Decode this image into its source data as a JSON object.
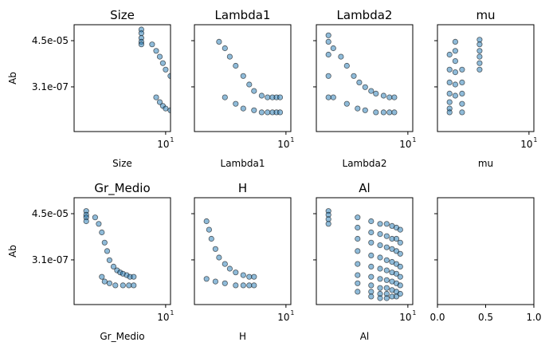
{
  "figure": {
    "shared_ylabel": "Ab",
    "shared_yticks": [
      "4.5e-05",
      "3.1e-07"
    ],
    "x_tick_base": "10",
    "x_tick_exp": "1",
    "point_color": "#1f77b4",
    "point_edge_color": "#000000",
    "point_alpha": 0.5
  },
  "chart_data": [
    {
      "type": "scatter",
      "title": "Size",
      "xlabel": "Size",
      "ylabel": "Ab",
      "x_scale": "log",
      "y_scale": "log",
      "y_ticks": [
        "4.5e-05",
        "3.1e-07"
      ],
      "x_ticks": [
        "10^1"
      ],
      "series": [
        {
          "x": [
            4,
            4,
            4,
            4,
            4
          ],
          "y": [
            0.00015,
            0.0001,
            6e-05,
            4e-05,
            3e-05
          ]
        },
        {
          "x": [
            6,
            7,
            8,
            9,
            10,
            12,
            14,
            16,
            18,
            20,
            22,
            25
          ],
          "y": [
            3e-05,
            1.5e-05,
            8e-06,
            4e-06,
            2e-06,
            1e-06,
            5e-07,
            3e-07,
            2e-07,
            1.5e-07,
            1.2e-07,
            1e-07
          ]
        },
        {
          "x": [
            7,
            8,
            9,
            10,
            12,
            14,
            16,
            18,
            20,
            22,
            25
          ],
          "y": [
            1e-07,
            6e-08,
            4e-08,
            3e-08,
            2.5e-08,
            2e-08,
            2e-08,
            2e-08,
            2e-08,
            2e-08,
            2e-08
          ]
        }
      ]
    },
    {
      "type": "scatter",
      "title": "Lambda1",
      "xlabel": "Lambda1",
      "ylabel": "",
      "x_scale": "log",
      "y_scale": "log",
      "x_ticks": [
        "10^1"
      ],
      "series": [
        {
          "x": [
            0.8,
            1,
            1.2,
            1.5,
            2,
            2.5,
            3,
            4,
            5,
            6,
            7,
            8
          ],
          "y": [
            4e-05,
            2e-05,
            8e-06,
            3e-06,
            1e-06,
            4e-07,
            2e-07,
            1.2e-07,
            1e-07,
            1e-07,
            1e-07,
            1e-07
          ]
        },
        {
          "x": [
            1,
            1.5,
            2,
            3,
            4,
            5,
            6,
            7,
            8
          ],
          "y": [
            1e-07,
            5e-08,
            3e-08,
            2.5e-08,
            2e-08,
            2e-08,
            2e-08,
            2e-08,
            2e-08
          ]
        }
      ]
    },
    {
      "type": "scatter",
      "title": "Lambda2",
      "xlabel": "Lambda2",
      "ylabel": "",
      "x_scale": "log",
      "y_scale": "log",
      "x_ticks": [
        "10^1"
      ],
      "series": [
        {
          "x": [
            0.5,
            0.5,
            0.5,
            0.5,
            0.5
          ],
          "y": [
            8e-05,
            4e-05,
            1e-05,
            1e-06,
            1e-07
          ]
        },
        {
          "x": [
            0.6,
            0.8,
            1,
            1.3,
            1.6,
            2,
            2.5,
            3,
            4,
            5,
            6
          ],
          "y": [
            2e-05,
            8e-06,
            3e-06,
            1e-06,
            5e-07,
            3e-07,
            2e-07,
            1.5e-07,
            1.2e-07,
            1e-07,
            1e-07
          ]
        },
        {
          "x": [
            0.6,
            1,
            1.5,
            2,
            3,
            4,
            5,
            6
          ],
          "y": [
            1e-07,
            5e-08,
            3e-08,
            2.5e-08,
            2e-08,
            2e-08,
            2e-08,
            2e-08
          ]
        }
      ]
    },
    {
      "type": "scatter",
      "title": "mu",
      "xlabel": "mu",
      "ylabel": "",
      "x_scale": "log",
      "y_scale": "log",
      "x_ticks": [
        "10^1"
      ],
      "series": [
        {
          "x": [
            0.5,
            0.5,
            0.5,
            0.5,
            0.5,
            0.5,
            0.5
          ],
          "y": [
            1e-05,
            2e-06,
            5e-07,
            1.5e-07,
            6e-08,
            3e-08,
            2e-08
          ]
        },
        {
          "x": [
            0.62,
            0.62,
            0.62,
            0.62,
            0.62,
            0.62
          ],
          "y": [
            4e-05,
            1.5e-05,
            5e-06,
            1.5e-06,
            4e-07,
            1.2e-07
          ]
        },
        {
          "x": [
            0.8,
            0.8,
            0.8,
            0.8,
            0.8
          ],
          "y": [
            2e-06,
            5e-07,
            1.5e-07,
            5e-08,
            2e-08
          ]
        },
        {
          "x": [
            1.55,
            1.55,
            1.55,
            1.55,
            1.55,
            1.55
          ],
          "y": [
            5e-05,
            3e-05,
            1.5e-05,
            8e-06,
            4e-06,
            2e-06
          ]
        }
      ]
    },
    {
      "type": "scatter",
      "title": "Gr_Medio",
      "xlabel": "Gr_Medio",
      "ylabel": "Ab",
      "x_scale": "log",
      "y_scale": "log",
      "y_ticks": [
        "4.5e-05",
        "3.1e-07"
      ],
      "x_ticks": [
        "10^1"
      ],
      "series": [
        {
          "x": [
            0.5,
            0.5,
            0.5,
            0.5
          ],
          "y": [
            6e-05,
            4e-05,
            3e-05,
            2e-05
          ]
        },
        {
          "x": [
            0.7,
            0.8,
            0.9,
            1,
            1.1,
            1.2,
            1.4,
            1.6,
            1.8,
            2,
            2.3,
            2.6,
            3
          ],
          "y": [
            3e-05,
            1.5e-05,
            6e-06,
            2e-06,
            8e-07,
            3e-07,
            1.5e-07,
            1e-07,
            8e-08,
            7e-08,
            6e-08,
            5e-08,
            5e-08
          ]
        },
        {
          "x": [
            0.9,
            1,
            1.2,
            1.5,
            2,
            2.5,
            3
          ],
          "y": [
            5e-08,
            3e-08,
            2.5e-08,
            2e-08,
            2e-08,
            2e-08,
            2e-08
          ]
        }
      ]
    },
    {
      "type": "scatter",
      "title": "H",
      "xlabel": "H",
      "ylabel": "",
      "x_scale": "log",
      "y_scale": "log",
      "x_ticks": [
        "10^1"
      ],
      "series": [
        {
          "x": [
            0.5,
            0.55,
            0.6,
            0.7,
            0.8,
            1,
            1.2,
            1.5,
            2,
            2.5,
            3
          ],
          "y": [
            2e-05,
            8e-06,
            3e-06,
            1e-06,
            4e-07,
            2e-07,
            1.2e-07,
            8e-08,
            6e-08,
            5e-08,
            5e-08
          ]
        },
        {
          "x": [
            0.5,
            0.7,
            1,
            1.5,
            2,
            2.5,
            3
          ],
          "y": [
            4e-08,
            3e-08,
            2.5e-08,
            2e-08,
            2e-08,
            2e-08,
            2e-08
          ]
        }
      ]
    },
    {
      "type": "scatter",
      "title": "Al",
      "xlabel": "Al",
      "ylabel": "",
      "x_scale": "log",
      "y_scale": "log",
      "x_ticks": [
        "10^1"
      ],
      "series": [
        {
          "x": [
            0.5,
            0.5,
            0.5,
            0.5
          ],
          "y": [
            6e-05,
            4e-05,
            2.5e-05,
            1.5e-05
          ]
        },
        {
          "x": [
            1.5,
            1.5,
            1.5,
            1.5,
            1.5,
            1.5,
            1.5,
            1.5
          ],
          "y": [
            3e-05,
            1e-05,
            3e-06,
            8e-07,
            2e-07,
            6e-08,
            2.5e-08,
            1e-08
          ]
        },
        {
          "x": [
            2.5,
            2.5,
            2.5,
            2.5,
            2.5,
            2.5,
            2.5,
            2.5,
            2.5
          ],
          "y": [
            2e-05,
            6e-06,
            2e-06,
            5e-07,
            1.5e-07,
            5e-08,
            2e-08,
            1e-08,
            6e-09
          ]
        },
        {
          "x": [
            3.5,
            3.5,
            3.5,
            3.5,
            3.5,
            3.5,
            3.5,
            3.5,
            3.5
          ],
          "y": [
            1.5e-05,
            5e-06,
            1.5e-06,
            4e-07,
            1.2e-07,
            4e-08,
            1.5e-08,
            8e-09,
            5e-09
          ]
        },
        {
          "x": [
            4.5,
            4.5,
            4.5,
            4.5,
            4.5,
            4.5,
            4.5,
            4.5,
            4.5
          ],
          "y": [
            1.5e-05,
            4e-06,
            1.2e-06,
            3e-07,
            1e-07,
            3.5e-08,
            1.5e-08,
            8e-09,
            5e-09
          ]
        },
        {
          "x": [
            5.5,
            5.5,
            5.5,
            5.5,
            5.5,
            5.5,
            5.5,
            5.5
          ],
          "y": [
            1.2e-05,
            3e-06,
            1e-06,
            2.5e-07,
            8e-08,
            3e-08,
            1.2e-08,
            6e-09
          ]
        },
        {
          "x": [
            6.5,
            6.5,
            6.5,
            6.5,
            6.5,
            6.5,
            6.5,
            6.5
          ],
          "y": [
            1e-05,
            3e-06,
            8e-07,
            2e-07,
            7e-08,
            2.5e-08,
            1e-08,
            6e-09
          ]
        },
        {
          "x": [
            7.5,
            7.5,
            7.5,
            7.5,
            7.5,
            7.5,
            7.5
          ],
          "y": [
            8e-06,
            2e-06,
            6e-07,
            1.5e-07,
            5e-08,
            2e-08,
            8e-09
          ]
        }
      ]
    },
    {
      "type": "scatter",
      "title": "",
      "xlabel": "",
      "ylabel": "",
      "x_scale": "linear",
      "x_ticks": [
        "0.0",
        "0.5",
        "1.0"
      ],
      "xlim": [
        0,
        1
      ],
      "series": []
    }
  ]
}
